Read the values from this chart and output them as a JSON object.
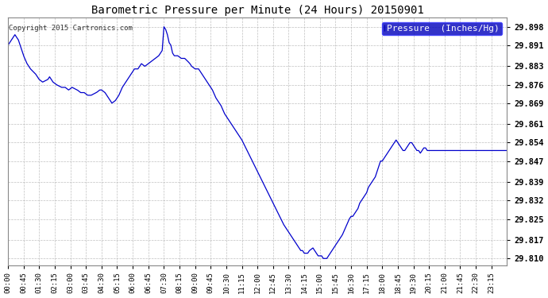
{
  "title": "Barometric Pressure per Minute (24 Hours) 20150901",
  "copyright": "Copyright 2015 Cartronics.com",
  "legend_label": "Pressure  (Inches/Hg)",
  "legend_bg": "#0000bb",
  "legend_text_color": "#ffffff",
  "line_color": "#0000cc",
  "bg_color": "#ffffff",
  "grid_color": "#b0b0b0",
  "ylim": [
    29.8075,
    29.9015
  ],
  "yticks": [
    29.81,
    29.817,
    29.825,
    29.832,
    29.839,
    29.847,
    29.854,
    29.861,
    29.869,
    29.876,
    29.883,
    29.891,
    29.898
  ],
  "xtick_labels": [
    "00:00",
    "00:45",
    "01:30",
    "02:15",
    "03:00",
    "03:45",
    "04:30",
    "05:15",
    "06:00",
    "06:45",
    "07:30",
    "08:15",
    "09:00",
    "09:45",
    "10:30",
    "11:15",
    "12:00",
    "12:45",
    "13:30",
    "14:15",
    "15:00",
    "15:45",
    "16:30",
    "17:15",
    "18:00",
    "18:45",
    "19:30",
    "20:15",
    "21:00",
    "21:45",
    "22:30",
    "23:15"
  ],
  "keypoints": [
    [
      0,
      29.891
    ],
    [
      10,
      29.893
    ],
    [
      20,
      29.895
    ],
    [
      30,
      29.893
    ],
    [
      45,
      29.887
    ],
    [
      55,
      29.884
    ],
    [
      65,
      29.882
    ],
    [
      80,
      29.88
    ],
    [
      90,
      29.878
    ],
    [
      100,
      29.877
    ],
    [
      115,
      29.878
    ],
    [
      120,
      29.879
    ],
    [
      130,
      29.877
    ],
    [
      140,
      29.876
    ],
    [
      155,
      29.875
    ],
    [
      165,
      29.875
    ],
    [
      175,
      29.874
    ],
    [
      185,
      29.875
    ],
    [
      200,
      29.874
    ],
    [
      210,
      29.873
    ],
    [
      220,
      29.873
    ],
    [
      230,
      29.872
    ],
    [
      240,
      29.872
    ],
    [
      255,
      29.873
    ],
    [
      265,
      29.874
    ],
    [
      270,
      29.874
    ],
    [
      280,
      29.873
    ],
    [
      285,
      29.872
    ],
    [
      290,
      29.871
    ],
    [
      300,
      29.869
    ],
    [
      310,
      29.87
    ],
    [
      320,
      29.872
    ],
    [
      330,
      29.875
    ],
    [
      345,
      29.878
    ],
    [
      355,
      29.88
    ],
    [
      365,
      29.882
    ],
    [
      375,
      29.882
    ],
    [
      385,
      29.884
    ],
    [
      395,
      29.883
    ],
    [
      405,
      29.884
    ],
    [
      415,
      29.885
    ],
    [
      425,
      29.886
    ],
    [
      435,
      29.887
    ],
    [
      445,
      29.889
    ],
    [
      450,
      29.898
    ],
    [
      455,
      29.897
    ],
    [
      460,
      29.895
    ],
    [
      465,
      29.892
    ],
    [
      470,
      29.891
    ],
    [
      475,
      29.888
    ],
    [
      480,
      29.887
    ],
    [
      490,
      29.887
    ],
    [
      500,
      29.886
    ],
    [
      510,
      29.886
    ],
    [
      518,
      29.885
    ],
    [
      525,
      29.884
    ],
    [
      530,
      29.883
    ],
    [
      540,
      29.882
    ],
    [
      550,
      29.882
    ],
    [
      560,
      29.88
    ],
    [
      570,
      29.878
    ],
    [
      580,
      29.876
    ],
    [
      590,
      29.874
    ],
    [
      600,
      29.871
    ],
    [
      615,
      29.868
    ],
    [
      625,
      29.865
    ],
    [
      635,
      29.863
    ],
    [
      645,
      29.861
    ],
    [
      655,
      29.859
    ],
    [
      665,
      29.857
    ],
    [
      675,
      29.855
    ],
    [
      690,
      29.851
    ],
    [
      705,
      29.847
    ],
    [
      720,
      29.843
    ],
    [
      735,
      29.839
    ],
    [
      750,
      29.835
    ],
    [
      765,
      29.831
    ],
    [
      780,
      29.827
    ],
    [
      795,
      29.823
    ],
    [
      810,
      29.82
    ],
    [
      820,
      29.818
    ],
    [
      830,
      29.816
    ],
    [
      840,
      29.814
    ],
    [
      845,
      29.813
    ],
    [
      850,
      29.813
    ],
    [
      855,
      29.812
    ],
    [
      860,
      29.812
    ],
    [
      865,
      29.812
    ],
    [
      870,
      29.813
    ],
    [
      880,
      29.814
    ],
    [
      885,
      29.813
    ],
    [
      890,
      29.812
    ],
    [
      895,
      29.811
    ],
    [
      900,
      29.811
    ],
    [
      905,
      29.811
    ],
    [
      910,
      29.81
    ],
    [
      915,
      29.81
    ],
    [
      920,
      29.81
    ],
    [
      925,
      29.811
    ],
    [
      930,
      29.812
    ],
    [
      935,
      29.813
    ],
    [
      940,
      29.814
    ],
    [
      945,
      29.815
    ],
    [
      955,
      29.817
    ],
    [
      965,
      29.819
    ],
    [
      975,
      29.822
    ],
    [
      985,
      29.825
    ],
    [
      990,
      29.826
    ],
    [
      995,
      29.826
    ],
    [
      1000,
      29.827
    ],
    [
      1005,
      29.828
    ],
    [
      1010,
      29.829
    ],
    [
      1015,
      29.831
    ],
    [
      1020,
      29.832
    ],
    [
      1025,
      29.833
    ],
    [
      1030,
      29.834
    ],
    [
      1035,
      29.835
    ],
    [
      1040,
      29.837
    ],
    [
      1050,
      29.839
    ],
    [
      1060,
      29.841
    ],
    [
      1065,
      29.843
    ],
    [
      1070,
      29.845
    ],
    [
      1075,
      29.847
    ],
    [
      1080,
      29.847
    ],
    [
      1085,
      29.848
    ],
    [
      1090,
      29.849
    ],
    [
      1095,
      29.85
    ],
    [
      1100,
      29.851
    ],
    [
      1105,
      29.852
    ],
    [
      1110,
      29.853
    ],
    [
      1115,
      29.854
    ],
    [
      1120,
      29.855
    ],
    [
      1125,
      29.854
    ],
    [
      1130,
      29.853
    ],
    [
      1135,
      29.852
    ],
    [
      1140,
      29.851
    ],
    [
      1145,
      29.851
    ],
    [
      1150,
      29.852
    ],
    [
      1155,
      29.853
    ],
    [
      1160,
      29.854
    ],
    [
      1165,
      29.854
    ],
    [
      1170,
      29.853
    ],
    [
      1175,
      29.852
    ],
    [
      1180,
      29.851
    ],
    [
      1185,
      29.851
    ],
    [
      1190,
      29.85
    ],
    [
      1195,
      29.851
    ],
    [
      1200,
      29.852
    ],
    [
      1205,
      29.852
    ],
    [
      1210,
      29.851
    ],
    [
      1215,
      29.851
    ],
    [
      1220,
      29.851
    ],
    [
      1225,
      29.851
    ],
    [
      1230,
      29.851
    ],
    [
      1235,
      29.851
    ],
    [
      1240,
      29.851
    ],
    [
      1245,
      29.851
    ],
    [
      1250,
      29.851
    ],
    [
      1255,
      29.851
    ],
    [
      1260,
      29.851
    ],
    [
      1265,
      29.851
    ],
    [
      1270,
      29.851
    ],
    [
      1275,
      29.851
    ],
    [
      1280,
      29.851
    ],
    [
      1285,
      29.851
    ],
    [
      1290,
      29.851
    ],
    [
      1295,
      29.851
    ],
    [
      1300,
      29.851
    ],
    [
      1305,
      29.851
    ],
    [
      1310,
      29.851
    ],
    [
      1315,
      29.851
    ],
    [
      1320,
      29.851
    ],
    [
      1325,
      29.851
    ],
    [
      1330,
      29.851
    ],
    [
      1335,
      29.851
    ],
    [
      1340,
      29.851
    ],
    [
      1345,
      29.851
    ],
    [
      1350,
      29.851
    ],
    [
      1355,
      29.851
    ],
    [
      1360,
      29.851
    ],
    [
      1365,
      29.851
    ],
    [
      1370,
      29.851
    ],
    [
      1375,
      29.851
    ],
    [
      1380,
      29.851
    ],
    [
      1385,
      29.851
    ],
    [
      1390,
      29.851
    ],
    [
      1395,
      29.851
    ],
    [
      1400,
      29.851
    ],
    [
      1405,
      29.851
    ],
    [
      1410,
      29.851
    ],
    [
      1415,
      29.851
    ],
    [
      1420,
      29.851
    ],
    [
      1425,
      29.851
    ],
    [
      1430,
      29.851
    ],
    [
      1435,
      29.851
    ],
    [
      1439,
      29.851
    ]
  ]
}
